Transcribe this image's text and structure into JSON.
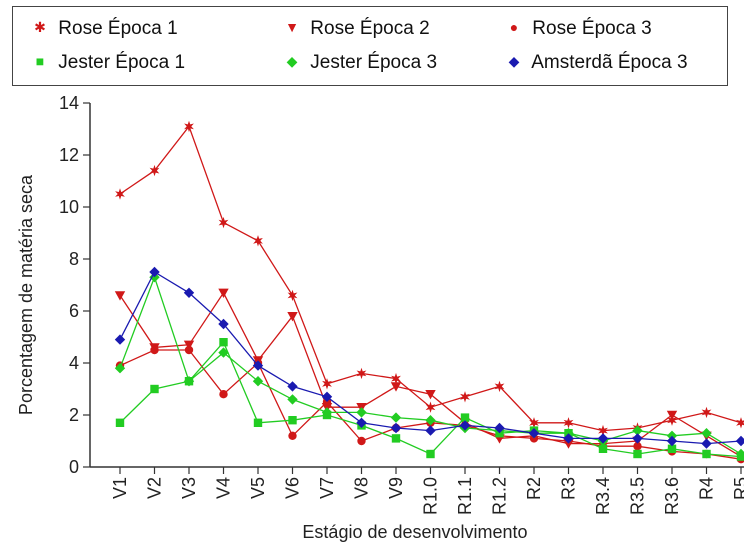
{
  "chart_data": {
    "type": "line",
    "xlabel": "Estágio de desenvolvimento",
    "ylabel": "Porcentagem de matéria seca",
    "ylim": [
      0,
      14
    ],
    "yticks": [
      0,
      2,
      4,
      6,
      8,
      10,
      12,
      14
    ],
    "categories": [
      "V1",
      "V2",
      "V3",
      "V4",
      "V5",
      "V6",
      "V7",
      "V8",
      "V9",
      "R1.0",
      "R1.1",
      "R1.2",
      "R2",
      "R3",
      "R3.4",
      "R3.5",
      "R3.6",
      "R4",
      "R5"
    ],
    "legend_placement": "top",
    "series": [
      {
        "name": "Rose Época 1",
        "color": "#d01818",
        "marker": "star",
        "values": [
          10.5,
          11.4,
          13.1,
          9.4,
          8.7,
          6.6,
          3.2,
          3.6,
          3.4,
          2.3,
          2.7,
          3.1,
          1.7,
          1.7,
          1.4,
          1.5,
          1.8,
          2.1,
          1.7
        ]
      },
      {
        "name": "Rose Época 2",
        "color": "#d01818",
        "marker": "triangle-down",
        "values": [
          6.6,
          4.6,
          4.7,
          6.7,
          4.1,
          5.8,
          2.3,
          2.3,
          3.1,
          2.8,
          1.7,
          1.1,
          1.2,
          0.9,
          0.9,
          1.0,
          2.0,
          1.2,
          0.4
        ]
      },
      {
        "name": "Rose Época 3",
        "color": "#d01818",
        "marker": "circle",
        "values": [
          3.9,
          4.5,
          4.5,
          2.8,
          4.0,
          1.2,
          2.5,
          1.0,
          1.5,
          1.7,
          1.6,
          1.2,
          1.1,
          1.0,
          0.8,
          0.8,
          0.6,
          0.5,
          0.3
        ]
      },
      {
        "name": "Jester Época 1",
        "color": "#22cc22",
        "marker": "square",
        "values": [
          1.7,
          3.0,
          3.3,
          4.8,
          1.7,
          1.8,
          2.0,
          1.6,
          1.1,
          0.5,
          1.9,
          1.3,
          1.4,
          1.3,
          0.7,
          0.5,
          0.7,
          0.5,
          0.4
        ]
      },
      {
        "name": "Jester Época 3",
        "color": "#22cc22",
        "marker": "diamond",
        "values": [
          3.8,
          7.3,
          3.3,
          4.4,
          3.3,
          2.6,
          2.1,
          2.1,
          1.9,
          1.8,
          1.5,
          1.4,
          1.3,
          1.3,
          1.0,
          1.4,
          1.2,
          1.3,
          0.5
        ]
      },
      {
        "name": "Amsterdã Época 3",
        "color": "#1a1ab0",
        "marker": "diamond",
        "values": [
          4.9,
          7.5,
          6.7,
          5.5,
          3.9,
          3.1,
          2.7,
          1.7,
          1.5,
          1.4,
          1.6,
          1.5,
          1.3,
          1.1,
          1.1,
          1.1,
          1.0,
          0.9,
          1.0
        ]
      }
    ]
  }
}
